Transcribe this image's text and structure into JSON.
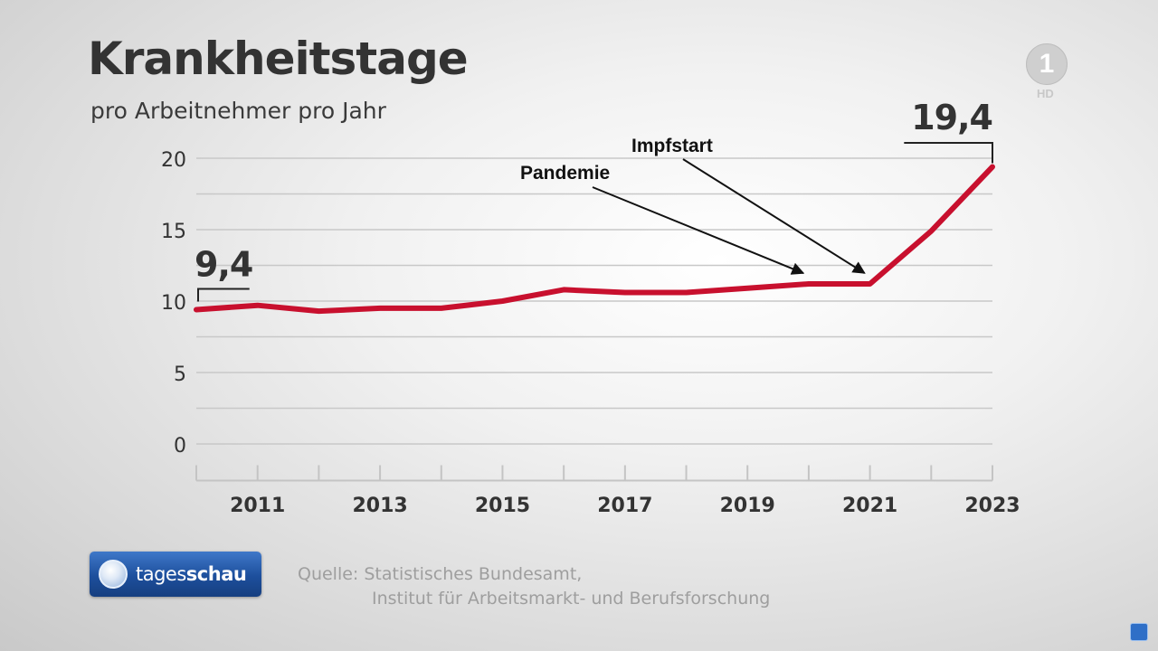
{
  "header": {
    "title": "Krankheitstage",
    "subtitle": "pro Arbeitnehmer pro Jahr"
  },
  "channel_logo": {
    "symbol": "1",
    "quality_label": "HD"
  },
  "brand": {
    "name_light": "tages",
    "name_bold": "schau"
  },
  "source": {
    "line1": "Quelle: Statistisches Bundesamt,",
    "line2": "Institut für Arbeitsmarkt- und Berufsforschung"
  },
  "colors": {
    "line": "#c8102e",
    "text": "#333333",
    "grid": "#c8c8c8",
    "brand_blue": "#1d4f9c"
  },
  "icons": {
    "corner": "info-icon",
    "brand": "globe-icon"
  },
  "chart_data": {
    "type": "line",
    "title": "Krankheitstage",
    "subtitle": "pro Arbeitnehmer pro Jahr",
    "xlabel": "",
    "ylabel": "",
    "x": [
      2010,
      2011,
      2012,
      2013,
      2014,
      2015,
      2016,
      2017,
      2018,
      2019,
      2020,
      2021,
      2022,
      2023
    ],
    "series": [
      {
        "name": "Krankheitstage",
        "values": [
          9.4,
          9.7,
          9.3,
          9.5,
          9.5,
          10.0,
          10.8,
          10.6,
          10.6,
          10.9,
          11.2,
          11.2,
          14.9,
          19.4
        ]
      }
    ],
    "xticks": [
      2011,
      2013,
      2015,
      2017,
      2019,
      2021,
      2023
    ],
    "xtick_labels": [
      "2011",
      "2013",
      "2015",
      "2017",
      "2019",
      "2021",
      "2023"
    ],
    "yticks": [
      0,
      5,
      10,
      15,
      20
    ],
    "ytick_labels": [
      "0",
      "5",
      "10",
      "15",
      "20"
    ],
    "ylim": [
      -2.5,
      20
    ],
    "xlim": [
      2010,
      2023
    ],
    "grid": true,
    "callouts": [
      {
        "label": "9,4",
        "x": 2010,
        "value": 9.4
      },
      {
        "label": "19,4",
        "x": 2023,
        "value": 19.4
      }
    ],
    "annotations": [
      {
        "text": "Pandemie",
        "x": 2020
      },
      {
        "text": "Impfstart",
        "x": 2021
      }
    ]
  }
}
